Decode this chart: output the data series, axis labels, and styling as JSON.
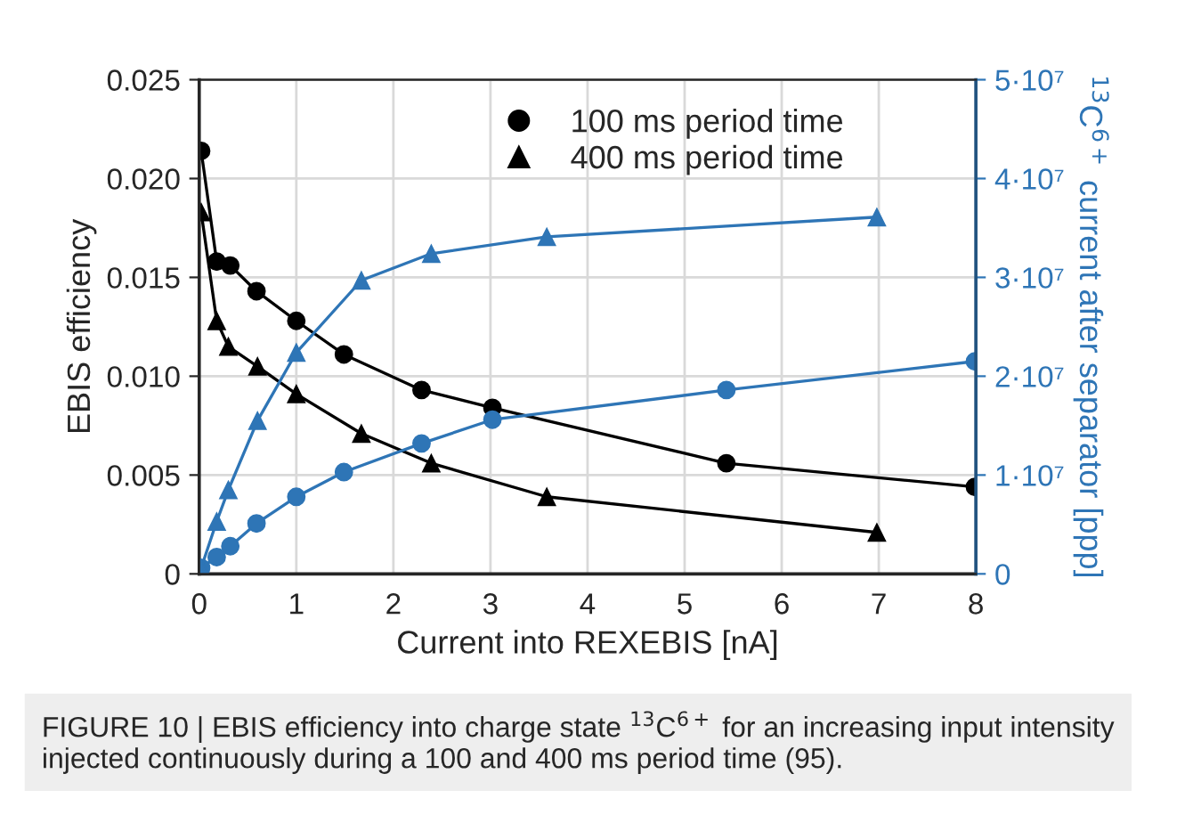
{
  "chart_data": {
    "type": "line",
    "xlabel": "Current into REXEBIS [nA]",
    "ylabel": "EBIS efficiency",
    "y2label": "$^{13}$C$^{6+}$ current after separator [ppp]",
    "xlim": [
      0,
      8
    ],
    "xticks": [
      0,
      1,
      2,
      3,
      4,
      5,
      6,
      7,
      8
    ],
    "ylim": [
      0,
      0.025
    ],
    "yticks": [
      {
        "value": 0,
        "label": "0"
      },
      {
        "value": 0.005,
        "label": "0.005"
      },
      {
        "value": 0.01,
        "label": "0.010"
      },
      {
        "value": 0.015,
        "label": "0.015"
      },
      {
        "value": 0.02,
        "label": "0.020"
      },
      {
        "value": 0.025,
        "label": "0.025"
      }
    ],
    "y2lim": [
      0,
      50000000
    ],
    "y2ticks": [
      {
        "value": 0,
        "label": "0"
      },
      {
        "value": 10000000,
        "label": "1·10⁷"
      },
      {
        "value": 20000000,
        "label": "2·10⁷"
      },
      {
        "value": 30000000,
        "label": "3·10⁷"
      },
      {
        "value": 40000000,
        "label": "4·10⁷"
      },
      {
        "value": 50000000,
        "label": "5·10⁷"
      }
    ],
    "grid": true,
    "legend": "top",
    "line_style": "solid",
    "series": [
      {
        "name": "100 ms period time",
        "color": "#000000",
        "marker": "circle",
        "x": [
          0.02,
          0.18,
          0.32,
          0.59,
          1.0,
          1.49,
          2.29,
          3.02,
          5.43,
          7.99
        ],
        "values": [
          0.0214,
          0.0158,
          0.0156,
          0.0143,
          0.0128,
          0.0111,
          0.0093,
          0.0084,
          0.0056,
          0.0044
        ]
      },
      {
        "name": "400 ms period time",
        "color": "#000000",
        "marker": "triangle",
        "x": [
          0.02,
          0.18,
          0.3,
          0.6,
          1.0,
          1.67,
          2.39,
          3.58,
          6.98
        ],
        "values": [
          0.0183,
          0.0128,
          0.0115,
          0.0105,
          0.0091,
          0.0071,
          0.0056,
          0.0039,
          0.0021
        ]
      },
      {
        "color": "#2e75b6",
        "marker": "circle",
        "axis": "y2",
        "x": [
          0.02,
          0.18,
          0.32,
          0.59,
          1.0,
          1.49,
          2.29,
          3.02,
          5.43,
          7.99
        ],
        "values": [
          600000,
          1700000,
          2800000,
          5100000,
          7800000,
          10300000,
          13200000,
          15600000,
          18600000,
          21500000
        ]
      },
      {
        "color": "#2e75b6",
        "marker": "triangle",
        "axis": "y2",
        "x": [
          0.02,
          0.18,
          0.3,
          0.6,
          1.0,
          1.67,
          2.39,
          3.58,
          6.98
        ],
        "values": [
          600000,
          5300000,
          8500000,
          15500000,
          22400000,
          29700000,
          32400000,
          34100000,
          36100000
        ]
      }
    ],
    "annotations": [
      "FIGURE 10 | EBIS efficiency into charge state $^{13}$C$^{6+}$ for an increasing input intensity injected continuously during a 100 and 400 ms period time (95)."
    ]
  }
}
